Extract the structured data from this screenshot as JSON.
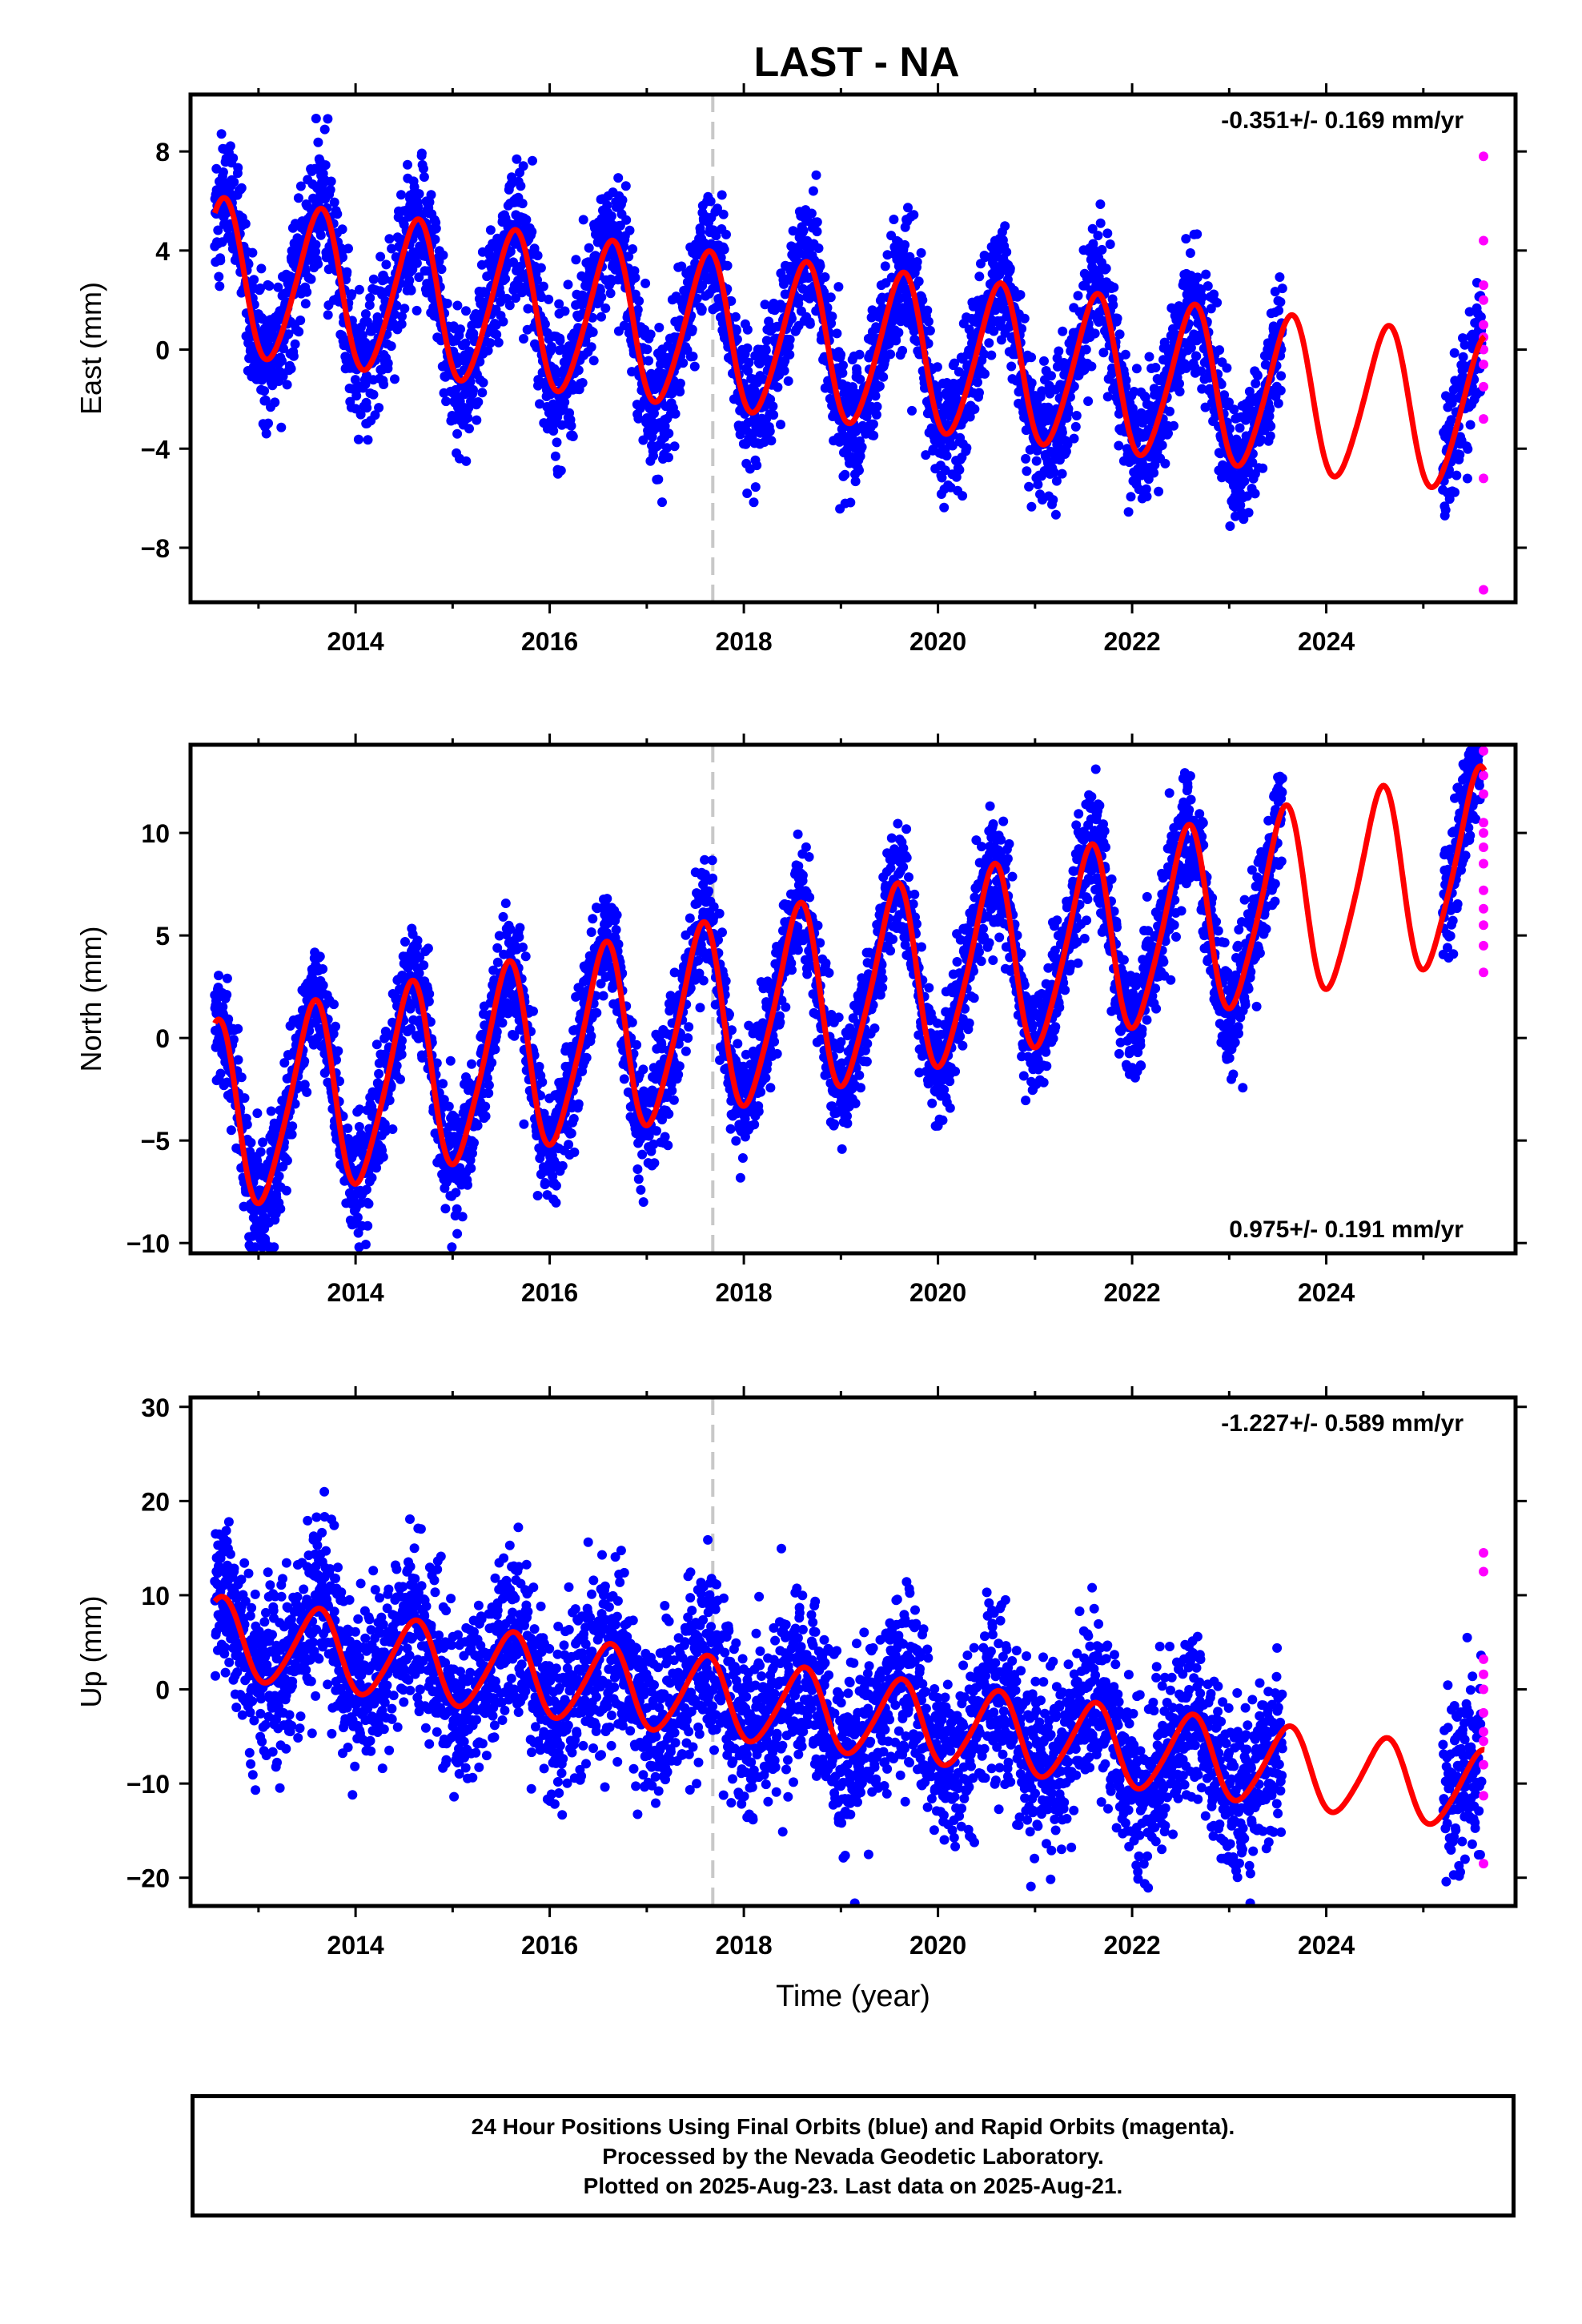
{
  "title": "LAST - NA",
  "colors": {
    "final_points": "#0000ff",
    "rapid_points": "#ff00ff",
    "model_curve": "#ff0000",
    "reference_line": "#c8c8c8",
    "axis": "#000000"
  },
  "chart_data": [
    {
      "type": "scatter",
      "id": "east",
      "ylabel": "East (mm)",
      "xlim": [
        2012.3,
        2025.95
      ],
      "ylim": [
        -10.2,
        10.3
      ],
      "yticks": [
        -8,
        -4,
        0,
        4,
        8
      ],
      "xticks": [
        2014,
        2016,
        2018,
        2020,
        2022,
        2024
      ],
      "rate_label": "-0.351+/- 0.169 mm/yr",
      "rate_label_position": "top-right",
      "reference_line_x": 2017.68,
      "model": {
        "t0": 2012.55,
        "offset": 2.9,
        "rate": -0.43,
        "annual_amp": 3.1,
        "annual_phase_year": 0.62,
        "semiannual_amp": 0.35,
        "range": [
          2012.55,
          2025.63
        ]
      },
      "final_orbits": {
        "ranges": [
          [
            2012.55,
            2023.55
          ],
          [
            2025.2,
            2025.6
          ]
        ],
        "noise_mm": 1.3,
        "outlier_mm": 9.9
      },
      "rapid_orbits_values": [
        7.8,
        4.4,
        2.6,
        2.0,
        1.0,
        0.5,
        0.0,
        -0.6,
        -1.5,
        -2.8,
        -5.2,
        -9.7
      ]
    },
    {
      "type": "scatter",
      "id": "north",
      "ylabel": "North (mm)",
      "xlim": [
        2012.3,
        2025.95
      ],
      "ylim": [
        -10.5,
        14.3
      ],
      "yticks": [
        -10,
        -5,
        0,
        5,
        10
      ],
      "xticks": [
        2014,
        2016,
        2018,
        2020,
        2022,
        2024
      ],
      "rate_label": "0.975+/- 0.191 mm/yr",
      "rate_label_position": "bottom-right",
      "reference_line_x": 2017.68,
      "model": {
        "t0": 2012.55,
        "offset": -4.0,
        "rate": 0.95,
        "annual_amp": 4.5,
        "annual_phase_year": 0.55,
        "semiannual_amp": 0.7,
        "range": [
          2012.55,
          2025.63
        ]
      },
      "final_orbits": {
        "ranges": [
          [
            2012.55,
            2023.55
          ],
          [
            2025.2,
            2025.6
          ]
        ],
        "noise_mm": 1.4,
        "outlier_mm": 14.0
      },
      "rapid_orbits_values": [
        14.0,
        12.8,
        11.9,
        10.5,
        10.0,
        9.3,
        8.5,
        7.2,
        6.3,
        5.5,
        4.5,
        3.2
      ]
    },
    {
      "type": "scatter",
      "id": "up",
      "ylabel": "Up (mm)",
      "xlabel": "Time (year)",
      "xlim": [
        2012.3,
        2025.95
      ],
      "ylim": [
        -23,
        31
      ],
      "yticks": [
        -20,
        -10,
        0,
        10,
        20,
        30
      ],
      "xticks": [
        2014,
        2016,
        2018,
        2020,
        2022,
        2024
      ],
      "rate_label": "-1.227+/- 0.589 mm/yr",
      "rate_label_position": "top-right",
      "reference_line_x": 2017.68,
      "model": {
        "t0": 2012.55,
        "offset": 5.5,
        "rate": -1.25,
        "annual_amp": 4.2,
        "annual_phase_year": 0.6,
        "semiannual_amp": 0.5,
        "range": [
          2012.55,
          2025.63
        ]
      },
      "final_orbits": {
        "ranges": [
          [
            2012.55,
            2023.55
          ],
          [
            2025.2,
            2025.6
          ]
        ],
        "noise_mm": 4.5,
        "outlier_mm": 30.0
      },
      "rapid_orbits_values": [
        14.5,
        12.5,
        3.2,
        1.6,
        0.0,
        -2.5,
        -4.5,
        -5.5,
        -8.0,
        -11.3,
        -18.5
      ]
    }
  ],
  "footer": {
    "line1": "24 Hour Positions Using Final Orbits (blue) and Rapid Orbits (magenta).",
    "line2": "Processed by the Nevada Geodetic Laboratory.",
    "line3": "Plotted on 2025-Aug-23. Last data on 2025-Aug-21."
  }
}
